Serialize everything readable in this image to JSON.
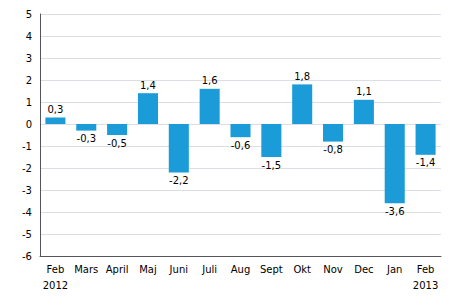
{
  "chart_data": {
    "type": "bar",
    "categories": [
      "Feb",
      "Mars",
      "April",
      "Maj",
      "Juni",
      "Juli",
      "Aug",
      "Sept",
      "Okt",
      "Nov",
      "Dec",
      "Jan",
      "Feb"
    ],
    "values": [
      0.3,
      -0.3,
      -0.5,
      1.4,
      -2.2,
      1.6,
      -0.6,
      -1.5,
      1.8,
      -0.8,
      1.1,
      -3.6,
      -1.4
    ],
    "value_labels": [
      "0,3",
      "-0,3",
      "-0,5",
      "1,4",
      "-2,2",
      "1,6",
      "-0,6",
      "-1,5",
      "1,8",
      "-0,8",
      "1,1",
      "-3,6",
      "-1,4"
    ],
    "data_labels": true,
    "color": "#1B9CD8",
    "ylim": [
      -6,
      5
    ],
    "yticks": [
      -6,
      -5,
      -4,
      -3,
      -2,
      -1,
      0,
      1,
      2,
      3,
      4,
      5
    ],
    "grid": true,
    "annotations": [
      {
        "text": "2012",
        "x": 0
      },
      {
        "text": "2013",
        "x": 12
      }
    ]
  }
}
